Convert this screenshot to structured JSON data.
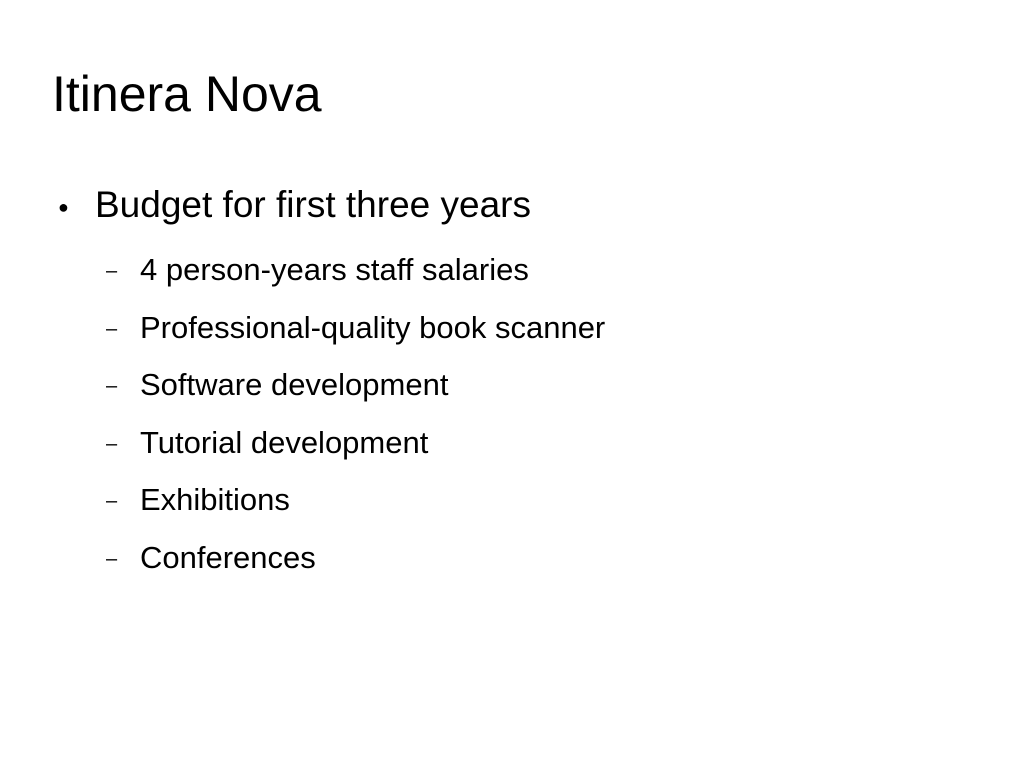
{
  "slide": {
    "title": "Itinera Nova",
    "bullet": {
      "marker": "●",
      "text": "Budget for first three years"
    },
    "sub_marker": "–",
    "sub_items": [
      "4 person-years staff salaries",
      "Professional-quality book scanner",
      "Software development",
      "Tutorial development",
      "Exhibitions",
      "Conferences"
    ]
  }
}
